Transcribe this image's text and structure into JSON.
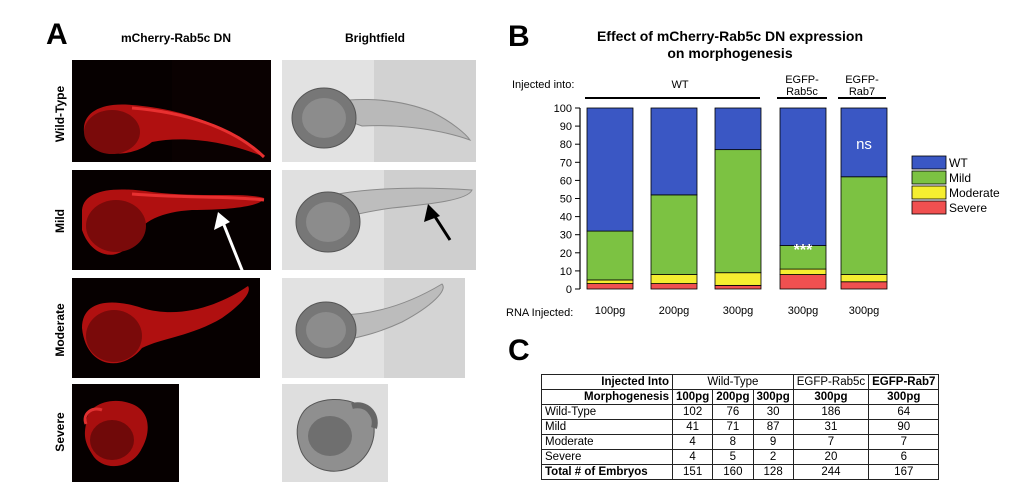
{
  "panel_a": {
    "letter": "A",
    "col_headers": [
      "mCherry-Rab5c DN",
      "Brightfield"
    ],
    "row_labels": [
      "Wild-Type",
      "Mild",
      "Moderate",
      "Severe"
    ]
  },
  "panel_b": {
    "letter": "B",
    "title_line1": "Effect of mCherry-Rab5c DN expression",
    "title_line2": "on morphogenesis",
    "injected_into_label": "Injected into:",
    "group_wt": "WT",
    "group_rab5c_line1": "EGFP-",
    "group_rab5c_line2": "Rab5c",
    "group_rab7_line1": "EGFP-",
    "group_rab7_line2": "Rab7",
    "rna_label": "RNA Injected:",
    "annotation_stars": "***",
    "annotation_ns": "ns"
  },
  "chart_data": {
    "type": "bar",
    "stacked": true,
    "categories": [
      "100pg",
      "200pg",
      "300pg",
      "300pg",
      "300pg"
    ],
    "series": [
      {
        "name": "Severe",
        "color": "#f05050",
        "values": [
          3,
          3,
          2,
          8,
          4
        ]
      },
      {
        "name": "Moderate",
        "color": "#f5ee30",
        "values": [
          2,
          5,
          7,
          3,
          4
        ]
      },
      {
        "name": "Mild",
        "color": "#7cc242",
        "values": [
          27,
          44,
          68,
          13,
          54
        ]
      },
      {
        "name": "WT",
        "color": "#3a57c4",
        "values": [
          68,
          48,
          23,
          76,
          38
        ]
      }
    ],
    "yticks": [
      0,
      10,
      20,
      30,
      40,
      50,
      60,
      70,
      80,
      90,
      100
    ],
    "ylim": [
      0,
      100
    ],
    "legend_order": [
      "WT",
      "Mild",
      "Moderate",
      "Severe"
    ],
    "legend_position": "right"
  },
  "panel_c": {
    "letter": "C",
    "header_row1": [
      "Injected Into",
      "Wild-Type",
      "EGFP-Rab5c",
      "EGFP-Rab7"
    ],
    "header_row2": [
      "Morphogenesis",
      "100pg",
      "200pg",
      "300pg",
      "300pg",
      "300pg"
    ],
    "rows": [
      [
        "Wild-Type",
        "102",
        "76",
        "30",
        "186",
        "64"
      ],
      [
        "Mild",
        "41",
        "71",
        "87",
        "31",
        "90"
      ],
      [
        "Moderate",
        "4",
        "8",
        "9",
        "7",
        "7"
      ],
      [
        "Severe",
        "4",
        "5",
        "2",
        "20",
        "6"
      ]
    ],
    "total_row": [
      "Total # of Embryos",
      "151",
      "160",
      "128",
      "244",
      "167"
    ]
  }
}
